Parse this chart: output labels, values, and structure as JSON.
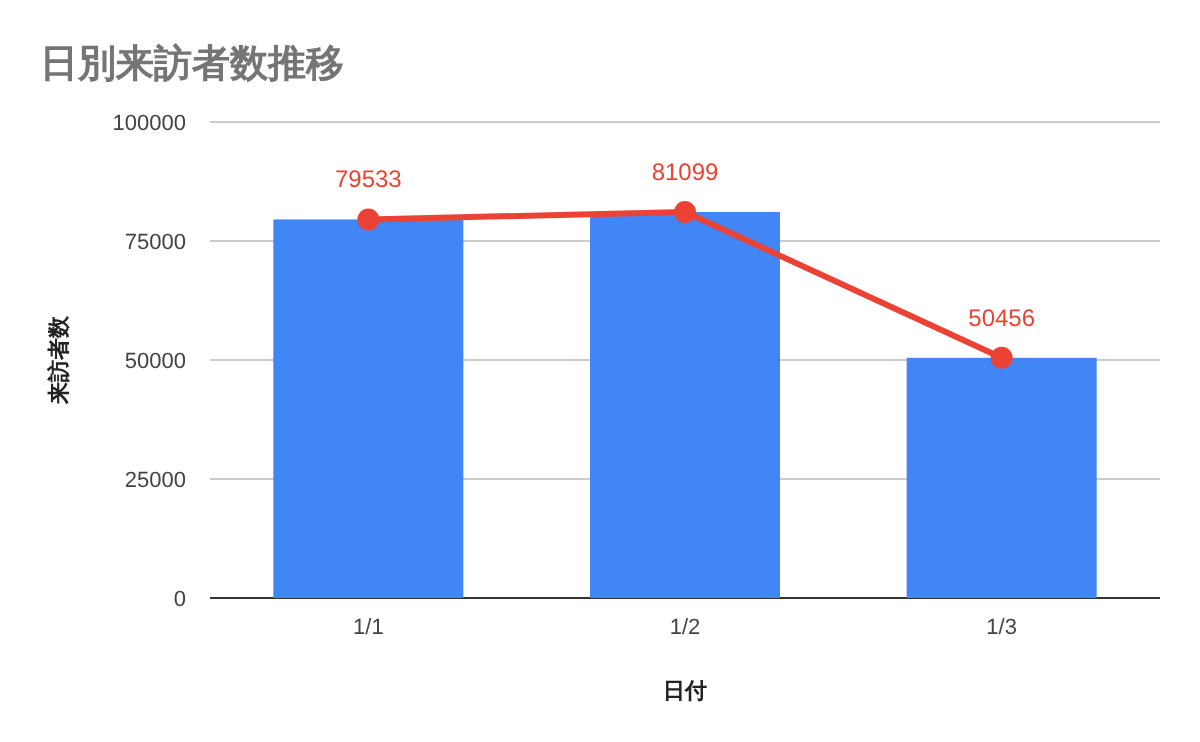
{
  "chart_data": {
    "type": "bar",
    "title": "日別来訪者数推移",
    "xlabel": "日付",
    "ylabel": "来訪者数",
    "categories": [
      "1/1",
      "1/2",
      "1/3"
    ],
    "series": [
      {
        "color": "#4285f4",
        "values": [
          79533,
          81099,
          50456
        ]
      },
      {
        "type": "line",
        "color": "#ea4335",
        "values": [
          79533,
          81099,
          50456
        ],
        "marker": "circle",
        "data_labels": true
      }
    ],
    "ylim": [
      0,
      100000
    ],
    "yticks": [
      0,
      25000,
      50000,
      75000,
      100000
    ],
    "grid": "y"
  }
}
